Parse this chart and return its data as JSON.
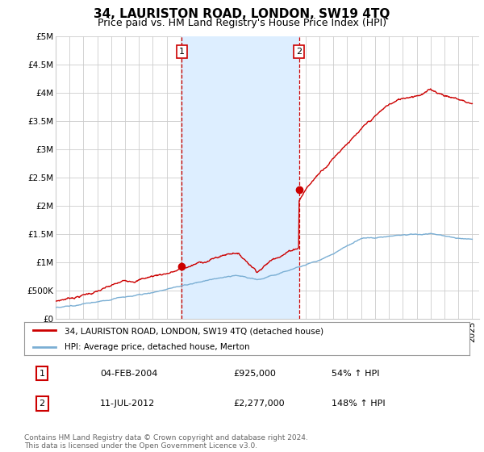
{
  "title": "34, LAURISTON ROAD, LONDON, SW19 4TQ",
  "subtitle": "Price paid vs. HM Land Registry's House Price Index (HPI)",
  "xlim_start": 1995.0,
  "xlim_end": 2025.5,
  "ylim_min": 0,
  "ylim_max": 5000000,
  "yticks": [
    0,
    500000,
    1000000,
    1500000,
    2000000,
    2500000,
    3000000,
    3500000,
    4000000,
    4500000,
    5000000
  ],
  "ytick_labels": [
    "£0",
    "£500K",
    "£1M",
    "£1.5M",
    "£2M",
    "£2.5M",
    "£3M",
    "£3.5M",
    "£4M",
    "£4.5M",
    "£5M"
  ],
  "vline1_x": 2004.09,
  "vline2_x": 2012.53,
  "sale1_x": 2004.09,
  "sale1_y": 925000,
  "sale2_x": 2012.53,
  "sale2_y": 2277000,
  "legend_line1": "34, LAURISTON ROAD, LONDON, SW19 4TQ (detached house)",
  "legend_line2": "HPI: Average price, detached house, Merton",
  "table_row1": [
    "1",
    "04-FEB-2004",
    "£925,000",
    "54% ↑ HPI"
  ],
  "table_row2": [
    "2",
    "11-JUL-2012",
    "£2,277,000",
    "148% ↑ HPI"
  ],
  "footer": "Contains HM Land Registry data © Crown copyright and database right 2024.\nThis data is licensed under the Open Government Licence v3.0.",
  "red_color": "#cc0000",
  "blue_color": "#7bafd4",
  "shade_color": "#ddeeff",
  "vline_color": "#cc0000",
  "grid_color": "#cccccc",
  "bg_color": "#f0f0f0",
  "title_fontsize": 11,
  "subtitle_fontsize": 9,
  "tick_fontsize": 7.5
}
